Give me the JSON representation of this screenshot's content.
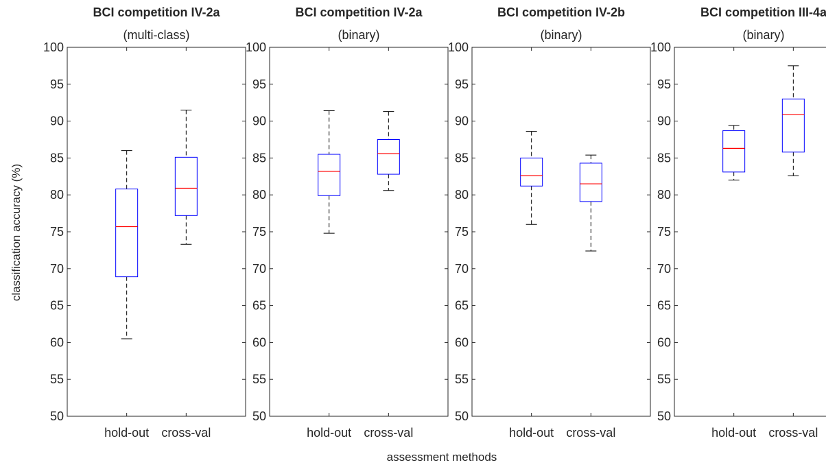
{
  "figure": {
    "ylabel": "classification accuracy (%)",
    "xlabel": "assessment methods"
  },
  "chart_data": [
    {
      "type": "box",
      "title": "BCI competition IV-2a",
      "subtitle": "(multi-class)",
      "categories": [
        "hold-out",
        "cross-val"
      ],
      "ylim": [
        50,
        100
      ],
      "yticks": [
        50,
        55,
        60,
        65,
        70,
        75,
        80,
        85,
        90,
        95,
        100
      ],
      "boxes": [
        {
          "min": 60.5,
          "q1": 68.9,
          "median": 75.7,
          "q3": 80.8,
          "max": 86.0
        },
        {
          "min": 73.3,
          "q1": 77.2,
          "median": 80.9,
          "q3": 85.1,
          "max": 91.5
        }
      ],
      "colors": {
        "box": "#0000ff",
        "median": "#ff0000",
        "whisker": "#000000"
      }
    },
    {
      "type": "box",
      "title": "BCI competition IV-2a",
      "subtitle": "(binary)",
      "categories": [
        "hold-out",
        "cross-val"
      ],
      "ylim": [
        50,
        100
      ],
      "yticks": [
        50,
        55,
        60,
        65,
        70,
        75,
        80,
        85,
        90,
        95,
        100
      ],
      "boxes": [
        {
          "min": 74.8,
          "q1": 79.9,
          "median": 83.2,
          "q3": 85.5,
          "max": 91.4
        },
        {
          "min": 80.6,
          "q1": 82.8,
          "median": 85.6,
          "q3": 87.5,
          "max": 91.3
        }
      ],
      "colors": {
        "box": "#0000ff",
        "median": "#ff0000",
        "whisker": "#000000"
      }
    },
    {
      "type": "box",
      "title": "BCI competition IV-2b",
      "subtitle": "(binary)",
      "categories": [
        "hold-out",
        "cross-val"
      ],
      "ylim": [
        50,
        100
      ],
      "yticks": [
        50,
        55,
        60,
        65,
        70,
        75,
        80,
        85,
        90,
        95,
        100
      ],
      "boxes": [
        {
          "min": 76.0,
          "q1": 81.2,
          "median": 82.6,
          "q3": 85.0,
          "max": 88.6
        },
        {
          "min": 72.4,
          "q1": 79.1,
          "median": 81.5,
          "q3": 84.3,
          "max": 85.4
        }
      ],
      "colors": {
        "box": "#0000ff",
        "median": "#ff0000",
        "whisker": "#000000"
      }
    },
    {
      "type": "box",
      "title": "BCI competition III-4a",
      "subtitle": "(binary)",
      "categories": [
        "hold-out",
        "cross-val"
      ],
      "ylim": [
        50,
        100
      ],
      "yticks": [
        50,
        55,
        60,
        65,
        70,
        75,
        80,
        85,
        90,
        95,
        100
      ],
      "boxes": [
        {
          "min": 82.0,
          "q1": 83.1,
          "median": 86.3,
          "q3": 88.7,
          "max": 89.4
        },
        {
          "min": 82.6,
          "q1": 85.8,
          "median": 90.9,
          "q3": 93.0,
          "max": 97.5
        }
      ],
      "colors": {
        "box": "#0000ff",
        "median": "#ff0000",
        "whisker": "#000000"
      }
    }
  ]
}
